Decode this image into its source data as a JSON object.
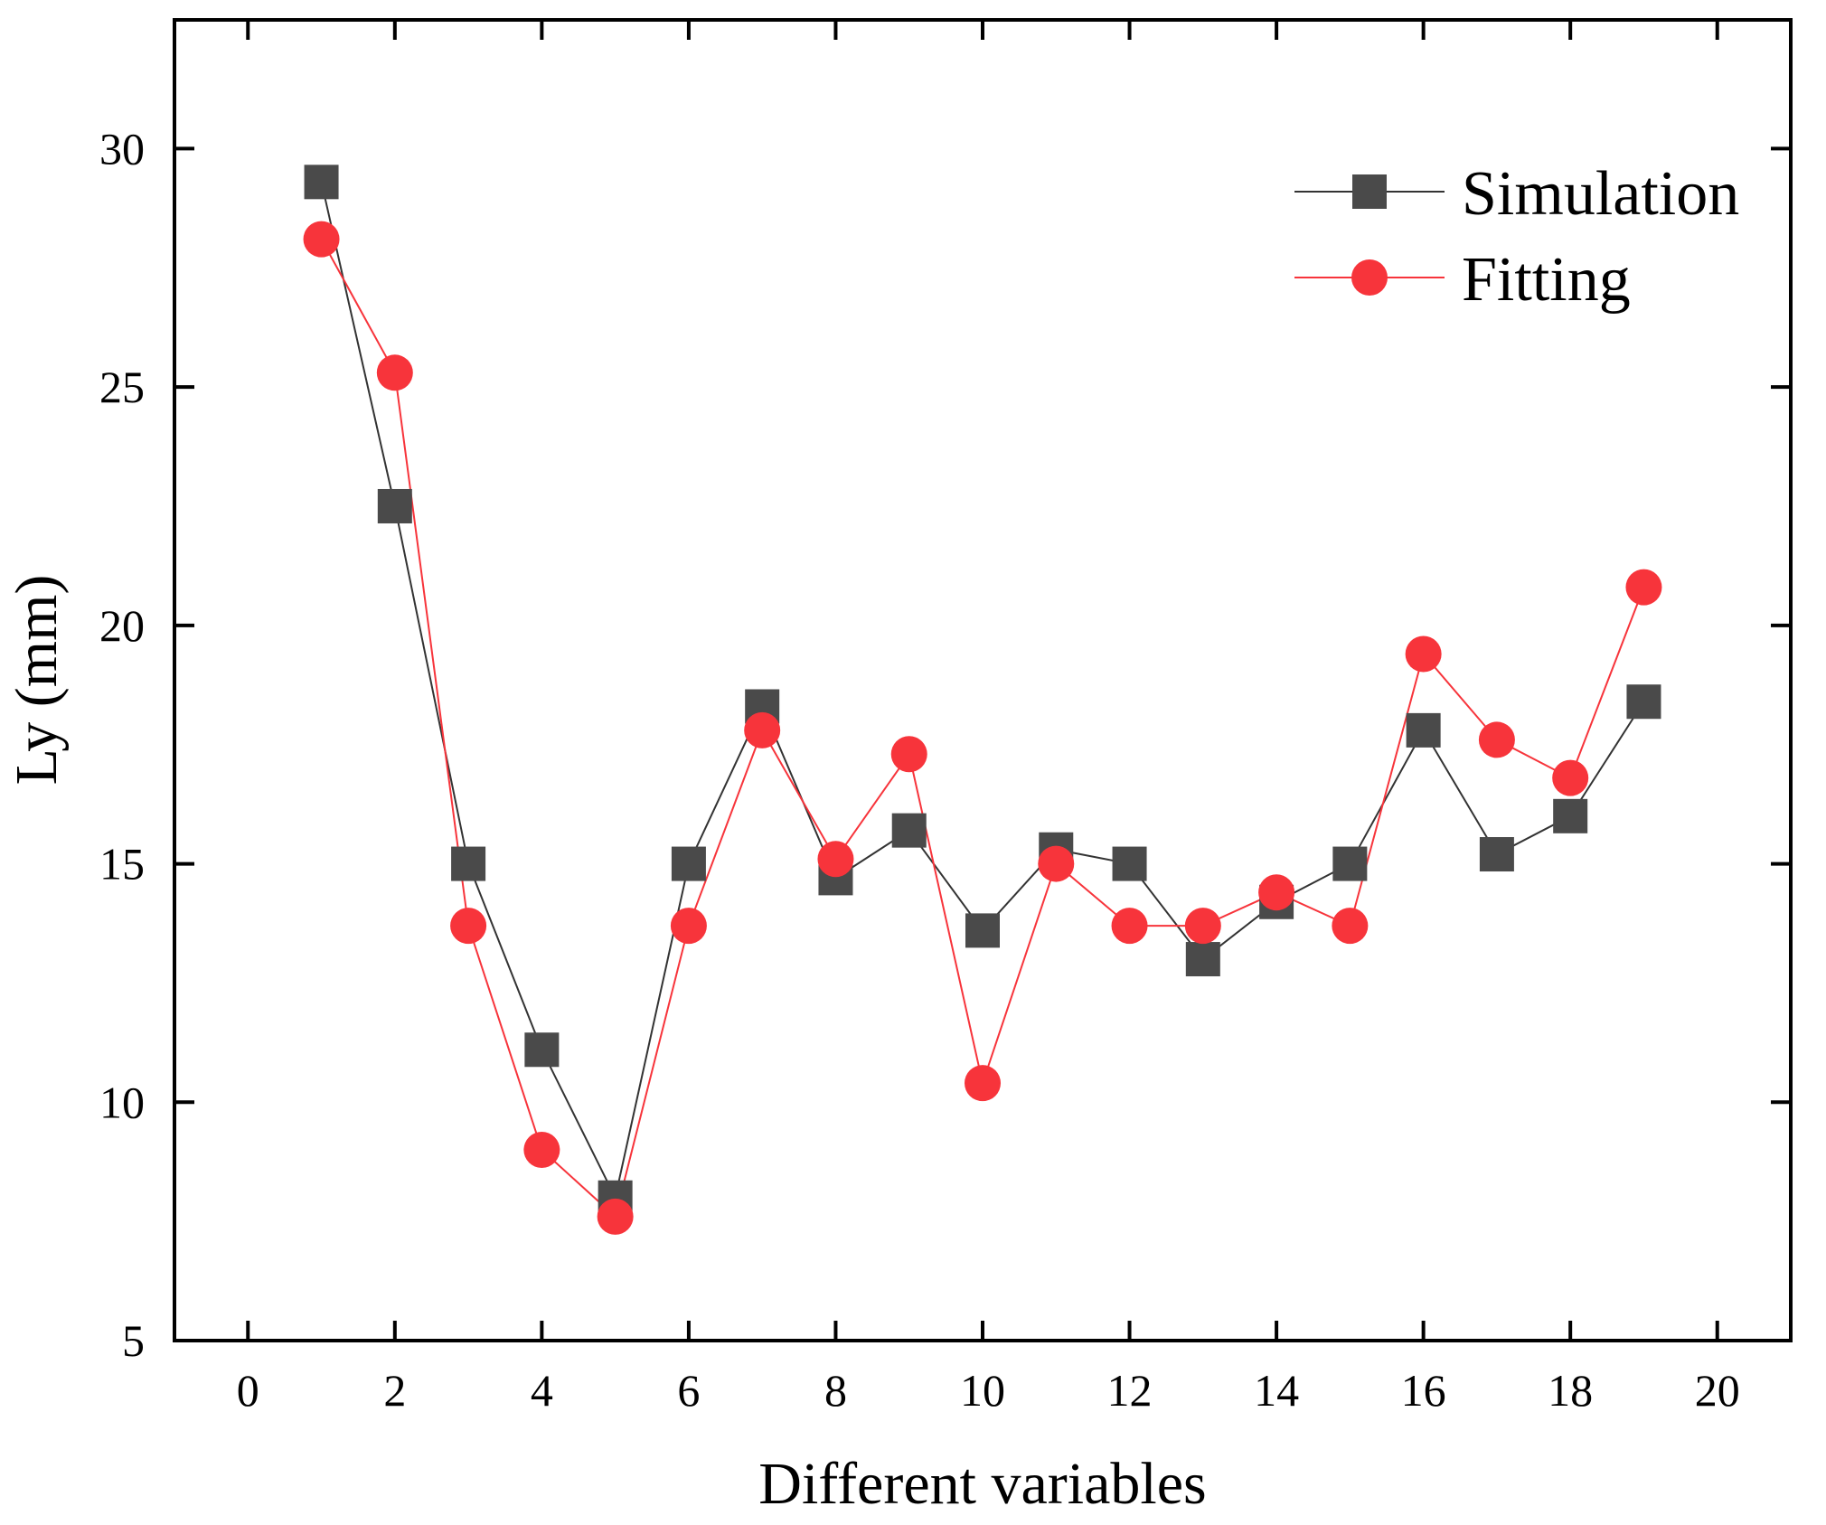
{
  "chart_data": {
    "type": "line",
    "title": "",
    "xlabel": "Different variables",
    "ylabel": "Ly (mm)",
    "xlim": [
      -1,
      21
    ],
    "ylim": [
      5,
      32.7
    ],
    "x_ticks": [
      0,
      2,
      4,
      6,
      8,
      10,
      12,
      14,
      16,
      18,
      20
    ],
    "y_ticks": [
      5,
      10,
      15,
      20,
      25,
      30
    ],
    "legend_position": "top-right",
    "x": [
      1,
      2,
      3,
      4,
      5,
      6,
      7,
      8,
      9,
      10,
      11,
      12,
      13,
      14,
      15,
      16,
      17,
      18,
      19
    ],
    "series": [
      {
        "name": "Simulation",
        "color": "#4a4a4a",
        "line_color": "#333333",
        "marker": "square",
        "values": [
          29.3,
          22.5,
          15.0,
          11.1,
          8.0,
          15.0,
          18.3,
          14.7,
          15.7,
          13.6,
          15.3,
          15.0,
          13.0,
          14.2,
          15.0,
          17.8,
          15.2,
          16.0,
          18.4
        ]
      },
      {
        "name": "Fitting",
        "color": "#f7343b",
        "line_color": "#f7343b",
        "marker": "circle",
        "values": [
          28.1,
          25.3,
          13.7,
          9.0,
          7.6,
          13.7,
          17.8,
          15.1,
          17.3,
          10.4,
          15.0,
          13.7,
          13.7,
          14.4,
          13.7,
          19.4,
          17.6,
          16.8,
          20.8
        ]
      }
    ]
  }
}
